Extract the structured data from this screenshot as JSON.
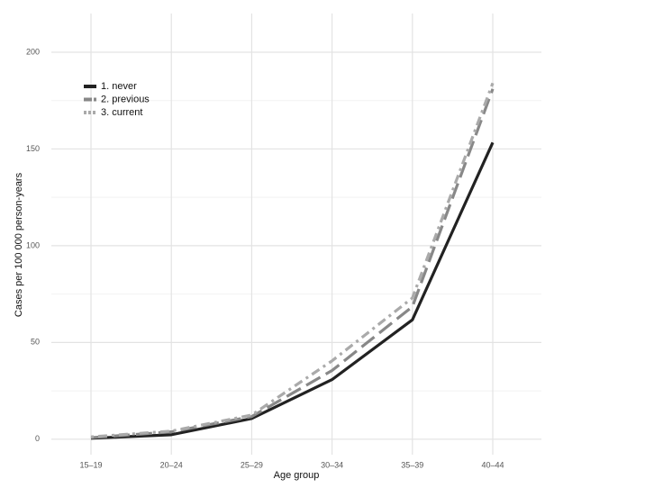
{
  "chart_data": {
    "type": "line",
    "x_label": "Age group",
    "y_label": "Cases per 100 000 person-years",
    "categories": [
      "15–19",
      "20–24",
      "25–29",
      "30–34",
      "35–39",
      "40–44"
    ],
    "series": [
      {
        "name": "1. never",
        "color": "#222222",
        "dash": "none",
        "values": [
          0.5,
          2.3,
          10.7,
          30.8,
          61.7,
          153.3
        ]
      },
      {
        "name": "2. previous",
        "color": "#888888",
        "dash": "18 7",
        "values": [
          0.8,
          3.8,
          11.7,
          35.5,
          68.5,
          181
        ]
      },
      {
        "name": "3. current",
        "color": "#aaaaaa",
        "dash": "3 5 10 5",
        "values": [
          1.2,
          4.2,
          12.5,
          40.5,
          73,
          184
        ]
      }
    ],
    "ylim": [
      -8,
      220
    ],
    "yticks": [
      0,
      50,
      100,
      150,
      200
    ],
    "yminorticks": [
      25,
      75,
      125,
      175
    ],
    "grid": true,
    "legend_position": "top-left"
  }
}
